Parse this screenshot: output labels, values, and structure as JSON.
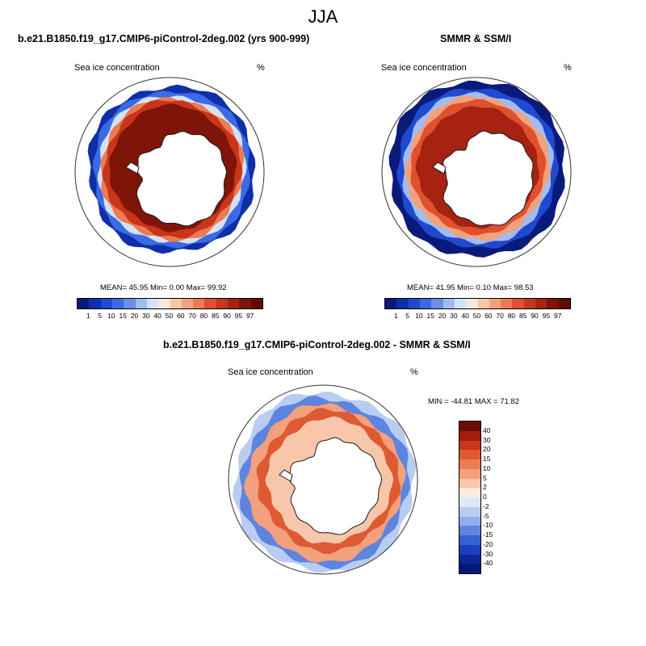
{
  "figure": {
    "season": "JJA",
    "top_left": {
      "title": "b.e21.B1850.f19_g17.CMIP6-piControl-2deg.002 (yrs 900-999)",
      "variable": "Sea ice concentration",
      "units": "%",
      "stats": "MEAN=  45.95  Min=   0.00  Max=  99.92"
    },
    "top_right": {
      "title": "SMMR & SSM/I",
      "variable": "Sea ice concentration",
      "units": "%",
      "stats": "MEAN=  41.95  Min=   0.10  Max=  98.53"
    },
    "bottom": {
      "title": "b.e21.B1850.f19_g17.CMIP6-piControl-2deg.002 - SMMR & SSM/I",
      "variable": "Sea ice concentration",
      "units": "%",
      "range_text": "MIN = -44.81 MAX =  71.82"
    },
    "colorbar_ticks": [
      "1",
      "5",
      "10",
      "15",
      "20",
      "30",
      "40",
      "50",
      "60",
      "70",
      "80",
      "85",
      "90",
      "95",
      "97"
    ],
    "colorbar_colors": [
      "#0a1a7a",
      "#0f2fa8",
      "#1f49d1",
      "#3b6ae2",
      "#6a8fe8",
      "#a3bcef",
      "#d4e1f7",
      "#fbe8dc",
      "#f6c7aa",
      "#f1a27c",
      "#eb7b52",
      "#e0502e",
      "#c8351a",
      "#a62312",
      "#7f1408",
      "#5e0b03"
    ],
    "diff_ticks": [
      "40",
      "30",
      "20",
      "15",
      "10",
      "5",
      "2",
      "0",
      "-2",
      "-5",
      "-10",
      "-15",
      "-20",
      "-30",
      "-40"
    ],
    "diff_colors": [
      "#6e0d03",
      "#a51d0e",
      "#c8361b",
      "#de5a33",
      "#eb7d56",
      "#f3a07d",
      "#f8c6a9",
      "#fdebdd",
      "#dde9f9",
      "#b9cdf2",
      "#8eadeb",
      "#5e84e0",
      "#3561d4",
      "#1b3fbf",
      "#0c2696",
      "#081878"
    ],
    "colors": {
      "coast": "#1a1a1a",
      "circle": "#333333"
    }
  }
}
